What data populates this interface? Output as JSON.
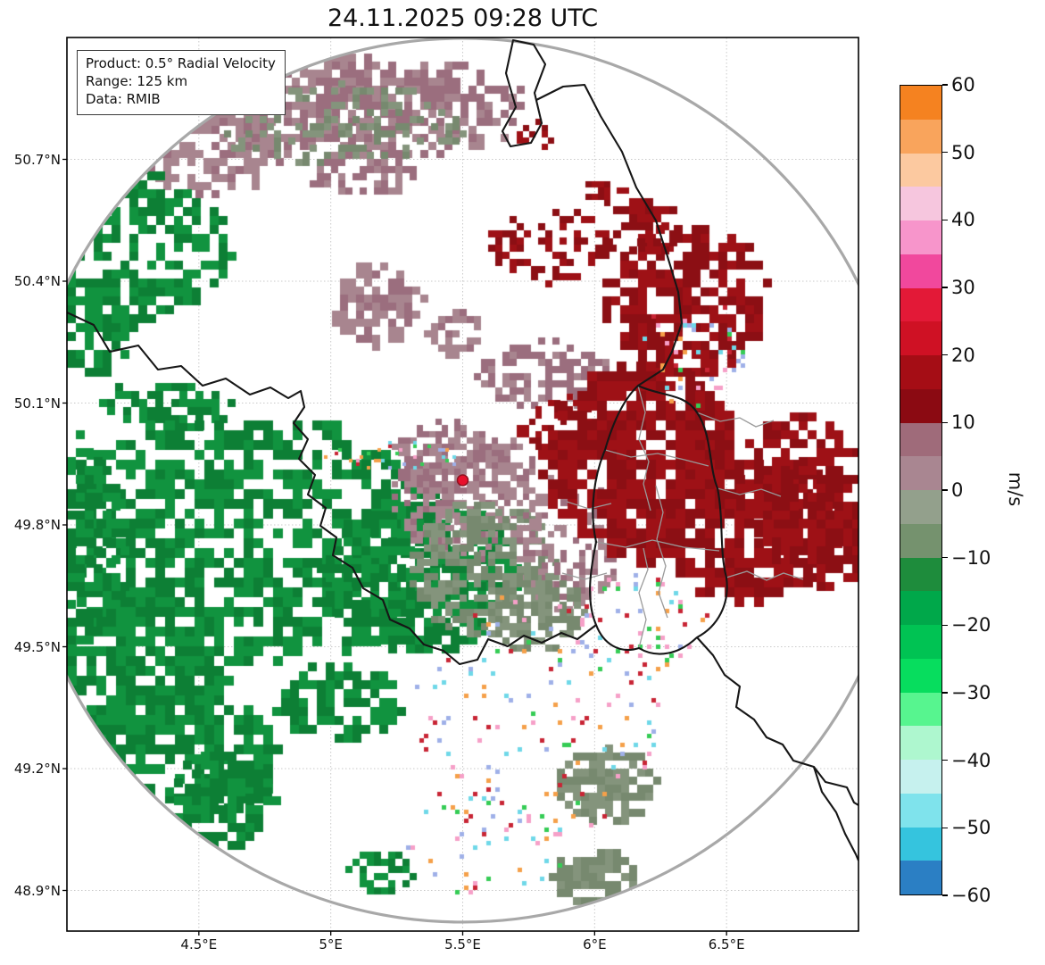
{
  "chart_data": {
    "type": "heatmap",
    "title": "24.11.2025 09:28 UTC",
    "product_box": {
      "line1": "Product: 0.5° Radial Velocity",
      "line2": "Range: 125 km",
      "line3": "Data: RMIB"
    },
    "axes": {
      "xlim": [
        4.0,
        7.0
      ],
      "ylim": [
        48.8,
        51.0
      ],
      "grid": true,
      "xticks": [
        {
          "value": 4.5,
          "label": "4.5°E"
        },
        {
          "value": 5.0,
          "label": "5°E"
        },
        {
          "value": 5.5,
          "label": "5.5°E"
        },
        {
          "value": 6.0,
          "label": "6°E"
        },
        {
          "value": 6.5,
          "label": "6.5°E"
        }
      ],
      "yticks": [
        {
          "value": 50.7,
          "label": "50.7°N"
        },
        {
          "value": 50.4,
          "label": "50.4°N"
        },
        {
          "value": 50.1,
          "label": "50.1°N"
        },
        {
          "value": 49.8,
          "label": "49.8°N"
        },
        {
          "value": 49.5,
          "label": "49.5°N"
        },
        {
          "value": 49.2,
          "label": "49.2°N"
        },
        {
          "value": 48.9,
          "label": "48.9°N"
        }
      ]
    },
    "radar_site": {
      "lon": 5.5,
      "lat": 49.91,
      "marker_color": "#e8112d"
    },
    "range_ring_km": 125,
    "colorbar": {
      "label": "m/s",
      "vmin": -60,
      "vmax": 60,
      "ticks": [
        {
          "v": 60,
          "label": "60"
        },
        {
          "v": 50,
          "label": "50"
        },
        {
          "v": 40,
          "label": "40"
        },
        {
          "v": 30,
          "label": "30"
        },
        {
          "v": 20,
          "label": "20"
        },
        {
          "v": 10,
          "label": "10"
        },
        {
          "v": 0,
          "label": "0"
        },
        {
          "v": -10,
          "label": "−10"
        },
        {
          "v": -20,
          "label": "−20"
        },
        {
          "v": -30,
          "label": "−30"
        },
        {
          "v": -40,
          "label": "−40"
        },
        {
          "v": -50,
          "label": "−50"
        },
        {
          "v": -60,
          "label": "−60"
        }
      ],
      "colors_top_to_bottom": [
        "#f58220",
        "#f9a45c",
        "#fcc9a0",
        "#f6c6de",
        "#f795cb",
        "#f1489d",
        "#e31937",
        "#cf1124",
        "#a50d15",
        "#8b0a12",
        "#9f6b7a",
        "#a98691",
        "#93a08c",
        "#75926e",
        "#1e8c3c",
        "#00a84a",
        "#00c353",
        "#07dd5e",
        "#57f58f",
        "#aef7cf",
        "#c6f1ee",
        "#7fe3ec",
        "#35c4de",
        "#2b7fc4"
      ]
    },
    "palette": {
      "green1": "#0d7f35",
      "green2": "#11933f",
      "sage": "#84947c",
      "sage2": "#77896f",
      "mauve": "#a8858f",
      "rosy": "#9b6e7e",
      "darkred": "#8c0f14",
      "darkred2": "#9e1116",
      "speckles": [
        "#6fd8e8",
        "#f6a0c8",
        "#f5a04a",
        "#35cc55",
        "#c82535",
        "#9fb0e8"
      ]
    },
    "echo_clusters": [
      [
        "mauve",
        250,
        65,
        170,
        52,
        9,
        300
      ],
      [
        "rosy",
        390,
        78,
        120,
        55,
        9,
        220
      ],
      [
        "mauve",
        150,
        120,
        95,
        52,
        9,
        150
      ],
      [
        "sage",
        300,
        95,
        140,
        45,
        8,
        130
      ],
      [
        "mauve",
        120,
        40,
        85,
        35,
        9,
        100
      ],
      [
        "rosy",
        330,
        150,
        60,
        30,
        8,
        60
      ],
      [
        "mauve",
        345,
        295,
        50,
        48,
        9,
        110
      ],
      [
        "rosy",
        530,
        375,
        75,
        38,
        8,
        110
      ],
      [
        "mauve",
        430,
        330,
        30,
        25,
        8,
        40
      ],
      [
        "green",
        60,
        230,
        120,
        85,
        10,
        260
      ],
      [
        "green",
        15,
        320,
        55,
        55,
        10,
        90
      ],
      [
        "green",
        110,
        410,
        75,
        28,
        9,
        80
      ],
      [
        "green",
        190,
        560,
        240,
        140,
        11,
        850
      ],
      [
        "green",
        80,
        700,
        95,
        95,
        11,
        280
      ],
      [
        "green",
        20,
        560,
        40,
        120,
        10,
        120
      ],
      [
        "green",
        390,
        600,
        110,
        85,
        10,
        330
      ],
      [
        "green",
        120,
        800,
        110,
        75,
        11,
        220
      ],
      [
        "green",
        170,
        850,
        60,
        50,
        10,
        110
      ],
      [
        "green",
        300,
        740,
        70,
        45,
        10,
        120
      ],
      [
        "green",
        350,
        930,
        40,
        25,
        8,
        40
      ],
      [
        "rosy",
        425,
        468,
        62,
        42,
        7,
        140
      ],
      [
        "mauve",
        450,
        510,
        85,
        75,
        7,
        300
      ],
      [
        "sage",
        465,
        592,
        82,
        78,
        8,
        280
      ],
      [
        "mauve",
        560,
        560,
        60,
        80,
        7,
        150
      ],
      [
        "sage",
        520,
        640,
        55,
        45,
        8,
        110
      ],
      [
        "darkred",
        540,
        230,
        72,
        40,
        8,
        85
      ],
      [
        "darkred",
        525,
        108,
        22,
        15,
        7,
        15
      ],
      [
        "darkred",
        600,
        170,
        25,
        18,
        7,
        20
      ],
      [
        "darkred",
        690,
        290,
        95,
        85,
        10,
        260
      ],
      [
        "darkred",
        640,
        210,
        40,
        30,
        9,
        50
      ],
      [
        "darkred",
        560,
        430,
        60,
        30,
        7,
        80
      ],
      [
        "darkred",
        640,
        470,
        110,
        110,
        11,
        520
      ],
      [
        "darkred",
        760,
        540,
        100,
        85,
        11,
        320
      ],
      [
        "darkred",
        815,
        500,
        68,
        85,
        10,
        200
      ],
      [
        "darkred",
        855,
        565,
        35,
        55,
        10,
        90
      ],
      [
        "sage",
        600,
        832,
        58,
        40,
        9,
        110
      ],
      [
        "sage",
        588,
        935,
        48,
        32,
        9,
        75
      ],
      [
        "speckle",
        520,
        760,
        140,
        140,
        5,
        130
      ],
      [
        "speckle",
        640,
        660,
        80,
        60,
        5,
        60
      ],
      [
        "speckle",
        700,
        350,
        60,
        60,
        5,
        45
      ],
      [
        "speckle",
        470,
        900,
        90,
        60,
        5,
        40
      ],
      [
        "speckle",
        370,
        468,
        85,
        15,
        4,
        35
      ]
    ],
    "map": {
      "border_color": "#161616",
      "inner_border_color": "#9a9a9a",
      "ring_color": "#a8a8a8",
      "borders_black": [
        "M500,3 L492,40 L503,78 L488,105 L497,122 L520,118 L532,96 L524,62 L536,30 L523,8 Z",
        "M526,70 L556,55 L580,53 L598,88 L622,128 L638,168 L660,205 L672,242 L685,285 L689,320 L678,352 L668,372 L640,390",
        "M640,390 C665,402 692,398 706,420 C723,445 719,480 729,505 C736,540 731,575 739,605 C743,635 729,660 706,672 C686,691 661,696 641,684 C619,691 601,679 593,658 C581,630 587,595 593,565 C585,530 591,490 603,462 C611,434 623,406 640,390 Z",
        "M0,308 L30,322 L48,352 L80,345 L102,372 L128,368 L152,390 L178,382 L205,400 L228,392 L248,404 L262,396 L266,414 L254,432 L270,450 L260,472 L278,490 L270,512 L290,527 L284,547 L302,560 L298,580 L320,594 L332,617 L354,630 L362,652 L384,662 L400,680 L422,687 L440,702 L460,697 L472,674 L494,682 L512,670 L532,678 L554,667 L572,674 L593,658",
        "M706,672 L724,692 L737,714 L754,727 L750,750 L770,764 L784,784 L802,792 L814,810 L837,817 L850,834 L874,840 L882,857 L887,860",
        "M837,817 L846,845 L862,868 L872,892 L884,915 L887,922"
      ],
      "borders_gray": [
        "M640,390 L648,420 L641,450 L652,475 L646,500 L654,530",
        "M603,462 L632,470 L662,466 L692,473 L719,480",
        "M593,565 L626,571 L656,563 L691,571 L731,575",
        "M641,684 L649,652 L641,622 L651,596 L646,572",
        "M660,502 L668,532 L661,562 L671,592 L663,622 L673,650",
        "M739,605 L762,598 L784,608 L803,600 L825,607",
        "M706,420 L732,430 L754,426 L772,436 L792,429",
        "M729,505 L754,512 L778,506 L800,514",
        "M560,520 L585,528 L610,522",
        "M555,600 L580,607 L605,600"
      ]
    }
  }
}
